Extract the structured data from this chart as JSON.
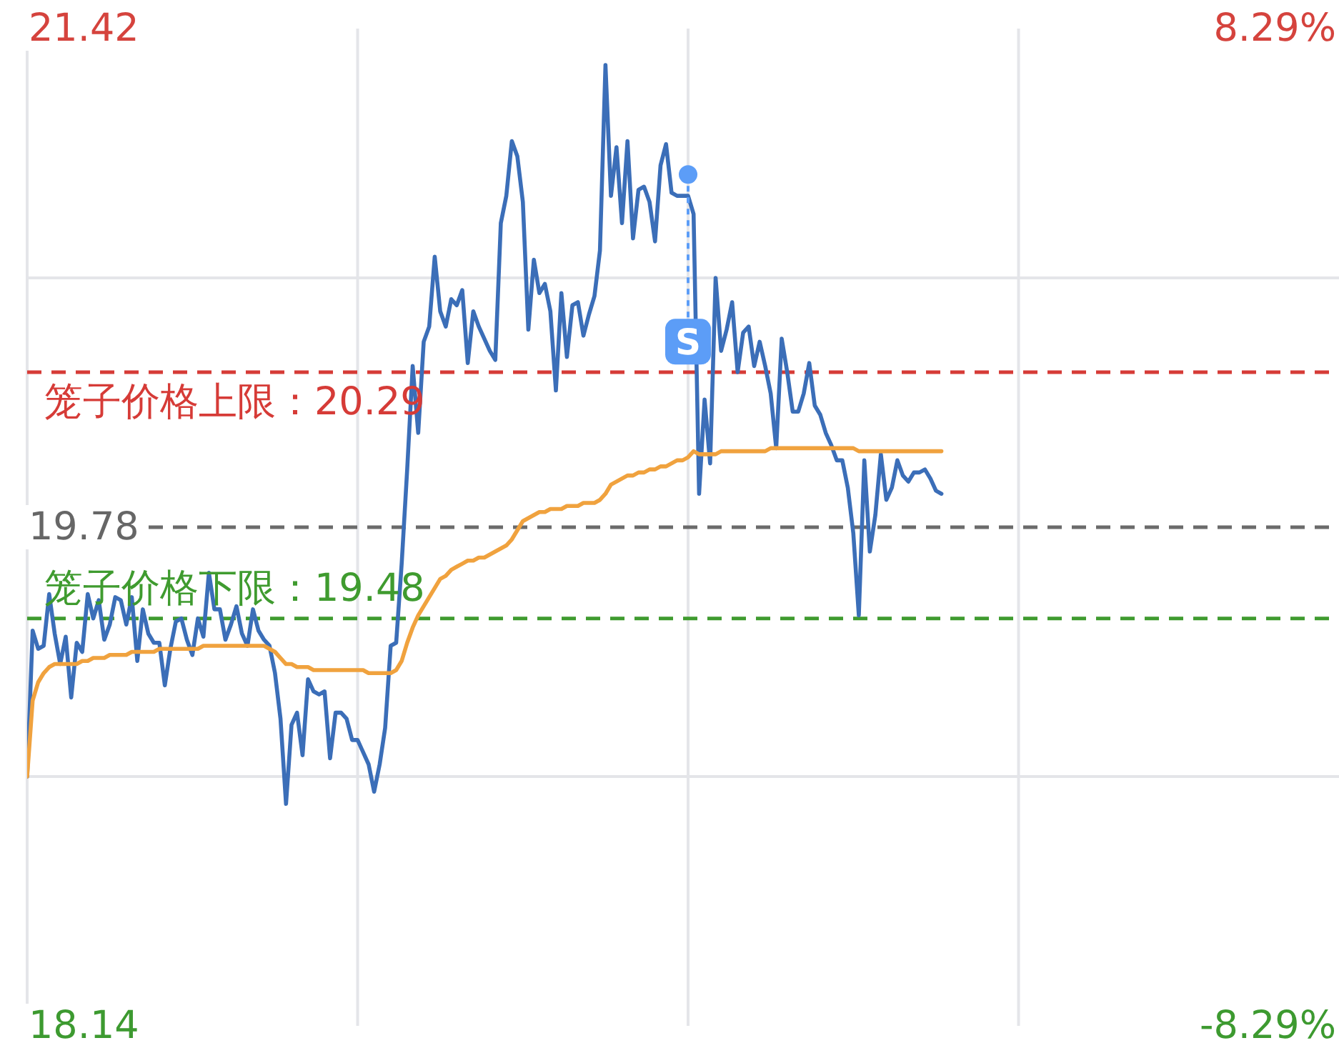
{
  "chart_data": {
    "type": "line",
    "categories": [
      null,
      null,
      null,
      null,
      null,
      null,
      null,
      null,
      null,
      null,
      null,
      null,
      null,
      null,
      null,
      null,
      null,
      null,
      null,
      null,
      null,
      null,
      null,
      null,
      null,
      null,
      null,
      null,
      null,
      null,
      null,
      null,
      null,
      null,
      null,
      null,
      null,
      null,
      null,
      null,
      null,
      null,
      null,
      null,
      null,
      null,
      null,
      null,
      null,
      null,
      null,
      null,
      null,
      null,
      null,
      null,
      null,
      null,
      null,
      null,
      null,
      null,
      null,
      null,
      null,
      null,
      null,
      null,
      null,
      null,
      null,
      null,
      null,
      null,
      null,
      null,
      null,
      null,
      null,
      null,
      null,
      null,
      null,
      null,
      null,
      null,
      null,
      null,
      null,
      null,
      null,
      null,
      null,
      null,
      null,
      null,
      null,
      null,
      null,
      null,
      null,
      null,
      null,
      null,
      null,
      null,
      null,
      null,
      null,
      null,
      null,
      null,
      null,
      null,
      null,
      null,
      null,
      null,
      null,
      null,
      null,
      null,
      null,
      null,
      null,
      null,
      null,
      null,
      null,
      null,
      null,
      null,
      null,
      null,
      null,
      null,
      null,
      null,
      null,
      null,
      null,
      null,
      null,
      null,
      null,
      null,
      null,
      null,
      null,
      null,
      null,
      null,
      null,
      null,
      null,
      null,
      null,
      null,
      null,
      null,
      null,
      null,
      null,
      null,
      null,
      null,
      null,
      null,
      null,
      null,
      null,
      null,
      null,
      null,
      null,
      null,
      null,
      null,
      null,
      null,
      null,
      null,
      null,
      null,
      null,
      null,
      null,
      null,
      null,
      null,
      null,
      null,
      null,
      null,
      null,
      null,
      null,
      null,
      null,
      null,
      null,
      null,
      null,
      null,
      null,
      null,
      null,
      null,
      null,
      null,
      null,
      null,
      null,
      null,
      null,
      null,
      null,
      null,
      null,
      null,
      null,
      null,
      null,
      null,
      null,
      null,
      null,
      null,
      null,
      null,
      null,
      null,
      null,
      null,
      null,
      null,
      null,
      null,
      null,
      null,
      null
    ],
    "series": [
      {
        "color": "#3b6eb8",
        "values": [
          18.96,
          19.44,
          19.38,
          19.39,
          19.56,
          19.43,
          19.33,
          19.42,
          19.22,
          19.4,
          19.37,
          19.56,
          19.48,
          19.54,
          19.41,
          19.46,
          19.55,
          19.54,
          19.46,
          19.55,
          19.34,
          19.51,
          19.43,
          19.4,
          19.4,
          19.26,
          19.38,
          19.47,
          19.48,
          19.41,
          19.36,
          19.48,
          19.42,
          19.63,
          19.51,
          19.51,
          19.41,
          19.46,
          19.52,
          19.43,
          19.39,
          19.51,
          19.44,
          19.41,
          19.39,
          19.3,
          19.15,
          18.87,
          19.13,
          19.17,
          19.03,
          19.28,
          19.24,
          19.23,
          19.24,
          19.02,
          19.17,
          19.17,
          19.15,
          19.08,
          19.08,
          19.04,
          19.0,
          18.91,
          19.0,
          19.12,
          19.39,
          19.4,
          19.66,
          19.97,
          20.31,
          20.09,
          20.39,
          20.44,
          20.67,
          20.49,
          20.44,
          20.53,
          20.51,
          20.56,
          20.32,
          20.49,
          20.44,
          20.4,
          20.36,
          20.33,
          20.78,
          20.87,
          21.05,
          21.0,
          20.85,
          20.43,
          20.66,
          20.55,
          20.58,
          20.49,
          20.23,
          20.55,
          20.34,
          20.51,
          20.52,
          20.41,
          20.48,
          20.54,
          20.69,
          21.3,
          20.87,
          21.03,
          20.78,
          21.05,
          20.73,
          20.89,
          20.9,
          20.85,
          20.72,
          20.97,
          21.04,
          20.88,
          20.87,
          20.87,
          20.87,
          20.81,
          19.89,
          20.2,
          19.99,
          20.6,
          20.36,
          20.43,
          20.52,
          20.29,
          20.42,
          20.44,
          20.31,
          20.39,
          20.31,
          20.22,
          20.04,
          20.4,
          20.29,
          20.16,
          20.16,
          20.22,
          20.32,
          20.18,
          20.15,
          20.09,
          20.05,
          20.0,
          20.0,
          19.91,
          19.76,
          19.49,
          20.0,
          19.7,
          19.82,
          20.02,
          19.87,
          19.91,
          20.0,
          19.95,
          19.93,
          19.96,
          19.96,
          19.97,
          19.94,
          19.9,
          19.89,
          null,
          null,
          null,
          null,
          null,
          null,
          null,
          null,
          null,
          null,
          null,
          null,
          null,
          null,
          null,
          null,
          null,
          null,
          null,
          null,
          null,
          null,
          null,
          null,
          null,
          null,
          null,
          null,
          null,
          null,
          null,
          null,
          null,
          null,
          null,
          null,
          null,
          null,
          null,
          null,
          null,
          null,
          null,
          null,
          null,
          null,
          null,
          null,
          null,
          null,
          null,
          null,
          null,
          null,
          null,
          null,
          null,
          null,
          null,
          null,
          null,
          null,
          null,
          null,
          null,
          null,
          null,
          null,
          null,
          null,
          null,
          null,
          null,
          null
        ]
      },
      {
        "color": "#f0a23e",
        "values": [
          18.96,
          19.21,
          19.27,
          19.3,
          19.32,
          19.33,
          19.33,
          19.33,
          19.33,
          19.33,
          19.34,
          19.34,
          19.35,
          19.35,
          19.35,
          19.36,
          19.36,
          19.36,
          19.36,
          19.37,
          19.37,
          19.37,
          19.37,
          19.37,
          19.38,
          19.38,
          19.38,
          19.38,
          19.38,
          19.38,
          19.38,
          19.38,
          19.39,
          19.39,
          19.39,
          19.39,
          19.39,
          19.39,
          19.39,
          19.39,
          19.39,
          19.39,
          19.39,
          19.39,
          19.38,
          19.37,
          19.35,
          19.33,
          19.33,
          19.32,
          19.32,
          19.32,
          19.31,
          19.31,
          19.31,
          19.31,
          19.31,
          19.31,
          19.31,
          19.31,
          19.31,
          19.31,
          19.3,
          19.3,
          19.3,
          19.3,
          19.3,
          19.31,
          19.34,
          19.4,
          19.45,
          19.49,
          19.52,
          19.55,
          19.58,
          19.61,
          19.62,
          19.64,
          19.65,
          19.66,
          19.67,
          19.67,
          19.68,
          19.68,
          19.69,
          19.7,
          19.71,
          19.72,
          19.74,
          19.77,
          19.8,
          19.81,
          19.82,
          19.83,
          19.83,
          19.84,
          19.84,
          19.84,
          19.85,
          19.85,
          19.85,
          19.86,
          19.86,
          19.86,
          19.87,
          19.89,
          19.92,
          19.93,
          19.94,
          19.95,
          19.95,
          19.96,
          19.96,
          19.97,
          19.97,
          19.98,
          19.98,
          19.99,
          20.0,
          20.0,
          20.01,
          20.03,
          20.02,
          20.02,
          20.02,
          20.02,
          20.03,
          20.03,
          20.03,
          20.03,
          20.03,
          20.03,
          20.03,
          20.03,
          20.03,
          20.04,
          20.04,
          20.04,
          20.04,
          20.04,
          20.04,
          20.04,
          20.04,
          20.04,
          20.04,
          20.04,
          20.04,
          20.04,
          20.04,
          20.04,
          20.04,
          20.03,
          20.03,
          20.03,
          20.03,
          20.03,
          20.03,
          20.03,
          20.03,
          20.03,
          20.03,
          20.03,
          20.03,
          20.03,
          20.03,
          20.03,
          20.03,
          null,
          null,
          null,
          null,
          null,
          null,
          null,
          null,
          null,
          null,
          null,
          null,
          null,
          null,
          null,
          null,
          null,
          null,
          null,
          null,
          null,
          null,
          null,
          null,
          null,
          null,
          null,
          null,
          null,
          null,
          null,
          null,
          null,
          null,
          null,
          null,
          null,
          null,
          null,
          null,
          null,
          null,
          null,
          null,
          null,
          null,
          null,
          null,
          null,
          null,
          null,
          null,
          null,
          null,
          null,
          null,
          null,
          null,
          null,
          null,
          null,
          null,
          null,
          null,
          null,
          null,
          null,
          null,
          null,
          null,
          null,
          null,
          null,
          null
        ]
      },
      {
        "type": "scatter",
        "color": "#5c9df7",
        "values": [
          null,
          null,
          null,
          null,
          null,
          null,
          null,
          null,
          null,
          null,
          null,
          null,
          null,
          null,
          null,
          null,
          null,
          null,
          null,
          null,
          null,
          null,
          null,
          null,
          null,
          null,
          null,
          null,
          null,
          null,
          null,
          null,
          null,
          null,
          null,
          null,
          null,
          null,
          null,
          null,
          null,
          null,
          null,
          null,
          null,
          null,
          null,
          null,
          null,
          null,
          null,
          null,
          null,
          null,
          null,
          null,
          null,
          null,
          null,
          null,
          null,
          null,
          null,
          null,
          null,
          null,
          null,
          null,
          null,
          null,
          null,
          null,
          null,
          null,
          null,
          null,
          null,
          null,
          null,
          null,
          null,
          null,
          null,
          null,
          null,
          null,
          null,
          null,
          null,
          null,
          null,
          null,
          null,
          null,
          null,
          null,
          null,
          null,
          null,
          null,
          null,
          null,
          null,
          null,
          null,
          null,
          null,
          null,
          null,
          null,
          null,
          null,
          null,
          null,
          null,
          null,
          null,
          null,
          null,
          null,
          20.94,
          null,
          null,
          null,
          null,
          null,
          null,
          null,
          null,
          null,
          null,
          null,
          null,
          null,
          null,
          null,
          null,
          null,
          null,
          null,
          null,
          null,
          null,
          null,
          null,
          null,
          null,
          null,
          null,
          null,
          null,
          null,
          null,
          null,
          null,
          null,
          null,
          null,
          null,
          null,
          null,
          null,
          null,
          null,
          null,
          null,
          null,
          null,
          null,
          null,
          null,
          null,
          null,
          null,
          null,
          null,
          null,
          null,
          null,
          null,
          null,
          null,
          null,
          null,
          null,
          null,
          null,
          null,
          null,
          null,
          null,
          null,
          null,
          null,
          null,
          null,
          null,
          null,
          null,
          null,
          null,
          null,
          null,
          null,
          null,
          null,
          null,
          null,
          null,
          null,
          null,
          null,
          null,
          null,
          null,
          null,
          null,
          null,
          null,
          null,
          null,
          null,
          null,
          null,
          null,
          null,
          null,
          null,
          null,
          null,
          null,
          null,
          null,
          null,
          null,
          null,
          null,
          null,
          null,
          null,
          null
        ]
      }
    ],
    "ylim": [
      18.14,
      21.42
    ],
    "yticks": [
      18.14,
      {
        "value": 18.96,
        "label": null
      },
      19.78,
      {
        "value": 20.6,
        "label": null
      },
      21.42
    ],
    "y2lim": [
      -8.29,
      8.29
    ],
    "y2ticks": [
      {
        "value": -8.29,
        "label": "-8.29%"
      },
      {
        "value": 8.29,
        "label": "8.29%"
      }
    ],
    "ref_lines": [
      {
        "axis": "y",
        "value": 20.29,
        "label": "笼子价格上限：20.29",
        "color": "#d63b37",
        "line_style": "dashed"
      },
      {
        "axis": "y",
        "value": 19.48,
        "label": "笼子价格下限：19.48",
        "color": "#3f9b2f",
        "line_style": "dashed"
      },
      {
        "axis": "y",
        "value": 19.78,
        "color": "#6b6b6b",
        "line_style": "dashed"
      }
    ],
    "annotations": [
      "S"
    ],
    "grid": true
  }
}
